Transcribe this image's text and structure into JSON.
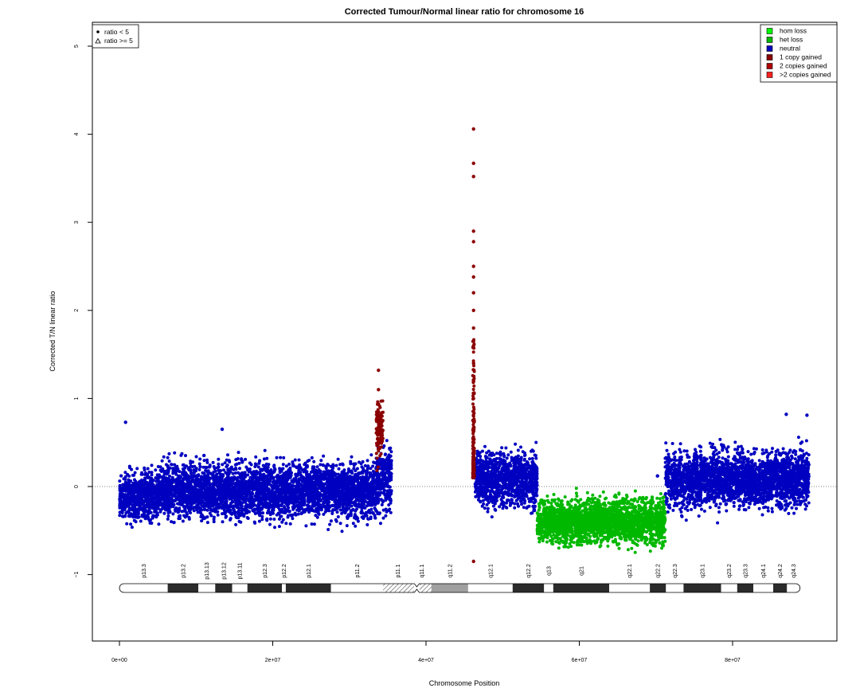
{
  "chart_data": {
    "type": "scatter",
    "title": "Corrected Tumour/Normal linear ratio for chromosome  16",
    "xlabel": "Chromosome Position",
    "ylabel": "Corrected T/N linear ratio",
    "xlim": [
      -18000000,
      94000000
    ],
    "ylim": [
      -1.8,
      5.35
    ],
    "x_ticks": [
      0,
      20000000,
      40000000,
      60000000,
      80000000
    ],
    "x_tick_labels": [
      "0e+00",
      "2e+07",
      "4e+07",
      "6e+07",
      "8e+07"
    ],
    "y_ticks": [
      -1,
      0,
      1,
      2,
      3,
      4,
      5
    ],
    "y_tick_labels": [
      "−1",
      "0",
      "1",
      "2",
      "3",
      "4",
      "5"
    ],
    "reference_line_y": 0,
    "grid": false,
    "shape_legend": {
      "position": "top-left",
      "entries": [
        {
          "label": "ratio < 5",
          "symbol": "dot"
        },
        {
          "label": "ratio >= 5",
          "symbol": "triangle"
        }
      ]
    },
    "color_legend": {
      "position": "top-right",
      "entries": [
        {
          "label": "hom loss",
          "color": "#00ff00"
        },
        {
          "label": "het loss",
          "color": "#00b800"
        },
        {
          "label": "neutral",
          "color": "#0000c0"
        },
        {
          "label": "1 copy gained",
          "color": "#8b0000"
        },
        {
          "label": "2 copies gained",
          "color": "#b00000"
        },
        {
          "label": ">2 copies gained",
          "color": "#ff2020"
        }
      ]
    },
    "series": [
      {
        "name": "neutral",
        "color": "#0000c0",
        "segments": [
          {
            "x_start": 0,
            "x_end": 5000000,
            "mean": -0.12,
            "spread": 0.18
          },
          {
            "x_start": 5000000,
            "x_end": 33500000,
            "mean": -0.05,
            "spread": 0.2
          },
          {
            "x_start": 33500000,
            "x_end": 35500000,
            "mean": 0.1,
            "spread": 0.25
          },
          {
            "x_start": 46400000,
            "x_end": 54500000,
            "mean": 0.08,
            "spread": 0.2
          },
          {
            "x_start": 71200000,
            "x_end": 90000000,
            "mean": 0.08,
            "spread": 0.2
          }
        ],
        "outliers": [
          {
            "x": 800000,
            "y": 0.73
          },
          {
            "x": 13400000,
            "y": 0.65
          },
          {
            "x": 70200000,
            "y": 0.12
          },
          {
            "x": 87000000,
            "y": 0.82
          },
          {
            "x": 89700000,
            "y": 0.81
          }
        ]
      },
      {
        "name": "het loss",
        "color": "#00b800",
        "segments": [
          {
            "x_start": 54500000,
            "x_end": 71200000,
            "mean": -0.4,
            "spread": 0.16
          }
        ]
      },
      {
        "name": "1 copy gained",
        "color": "#8b0000",
        "segments": [
          {
            "x_start": 33500000,
            "x_end": 34400000,
            "mean": 0.65,
            "spread": 0.22
          }
        ],
        "outliers": [
          {
            "x": 46200000,
            "y": 4.06
          },
          {
            "x": 46200000,
            "y": 3.67
          },
          {
            "x": 46200000,
            "y": 3.52
          },
          {
            "x": 46200000,
            "y": 2.9
          },
          {
            "x": 46200000,
            "y": 2.78
          },
          {
            "x": 46200000,
            "y": 2.5
          },
          {
            "x": 46200000,
            "y": 2.38
          },
          {
            "x": 46200000,
            "y": 2.2
          },
          {
            "x": 46200000,
            "y": 2.0
          },
          {
            "x": 46200000,
            "y": 1.8
          },
          {
            "x": 46200000,
            "y": 1.6
          },
          {
            "x": 46200000,
            "y": 1.4
          },
          {
            "x": 46200000,
            "y": 1.2
          },
          {
            "x": 46200000,
            "y": 1.0
          },
          {
            "x": 46200000,
            "y": 0.8
          },
          {
            "x": 46200000,
            "y": -0.85
          },
          {
            "x": 33800000,
            "y": 1.32
          },
          {
            "x": 33800000,
            "y": 1.1
          }
        ]
      }
    ],
    "ideogram": {
      "bands": [
        {
          "name": "p13.3",
          "start": 0,
          "end": 6300000,
          "stain": "gneg"
        },
        {
          "name": "p13.2",
          "start": 6300000,
          "end": 10300000,
          "stain": "gpos"
        },
        {
          "name": "p13.13",
          "start": 10300000,
          "end": 12500000,
          "stain": "gneg"
        },
        {
          "name": "p13.12",
          "start": 12500000,
          "end": 14700000,
          "stain": "gpos"
        },
        {
          "name": "p13.11",
          "start": 14700000,
          "end": 16700000,
          "stain": "gneg"
        },
        {
          "name": "p12.3",
          "start": 16700000,
          "end": 21200000,
          "stain": "gpos"
        },
        {
          "name": "p12.2",
          "start": 21200000,
          "end": 21700000,
          "stain": "gneg"
        },
        {
          "name": "p12.1",
          "start": 21700000,
          "end": 27600000,
          "stain": "gpos"
        },
        {
          "name": "p11.2",
          "start": 27600000,
          "end": 34400000,
          "stain": "gneg"
        },
        {
          "name": "p11.1",
          "start": 34400000,
          "end": 38200000,
          "stain": "acen"
        },
        {
          "name": "q11.1",
          "start": 38200000,
          "end": 40700000,
          "stain": "acen"
        },
        {
          "name": "q11.2",
          "start": 40700000,
          "end": 45500000,
          "stain": "gvar"
        },
        {
          "name": "q12.1",
          "start": 45500000,
          "end": 51300000,
          "stain": "gneg"
        },
        {
          "name": "q12.2",
          "start": 51300000,
          "end": 55400000,
          "stain": "gpos"
        },
        {
          "name": "q13",
          "start": 55400000,
          "end": 56600000,
          "stain": "gneg"
        },
        {
          "name": "q21",
          "start": 56600000,
          "end": 63900000,
          "stain": "gpos"
        },
        {
          "name": "q22.1",
          "start": 63900000,
          "end": 69200000,
          "stain": "gneg"
        },
        {
          "name": "q22.2",
          "start": 69200000,
          "end": 71300000,
          "stain": "gpos"
        },
        {
          "name": "q22.3",
          "start": 71300000,
          "end": 73600000,
          "stain": "gneg"
        },
        {
          "name": "q23.1",
          "start": 73600000,
          "end": 78500000,
          "stain": "gpos"
        },
        {
          "name": "q23.2",
          "start": 78500000,
          "end": 80600000,
          "stain": "gneg"
        },
        {
          "name": "q23.3",
          "start": 80600000,
          "end": 82700000,
          "stain": "gpos"
        },
        {
          "name": "q24.1",
          "start": 82700000,
          "end": 85300000,
          "stain": "gneg"
        },
        {
          "name": "q24.2",
          "start": 85300000,
          "end": 87100000,
          "stain": "gpos"
        },
        {
          "name": "q24.3",
          "start": 87100000,
          "end": 88800000,
          "stain": "gneg"
        }
      ]
    }
  }
}
